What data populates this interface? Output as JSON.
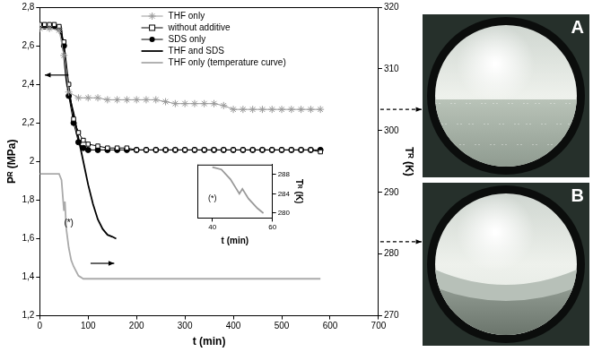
{
  "chart_data": [
    {
      "type": "line",
      "x_label": "t (min)",
      "y_label": "Pᴿ (MPa)",
      "y2_label": "Tᴿ (K)",
      "xlim": [
        0,
        700
      ],
      "xticks": [
        0,
        100,
        200,
        300,
        400,
        500,
        600,
        700
      ],
      "ylim": [
        1.2,
        2.8
      ],
      "yticks": [
        {
          "value": 1.2,
          "label": "1,2"
        },
        {
          "value": 1.4,
          "label": "1,4"
        },
        {
          "value": 1.6,
          "label": "1,6"
        },
        {
          "value": 1.8,
          "label": "1,8"
        },
        2,
        {
          "value": 2.2,
          "label": "2,2"
        },
        {
          "value": 2.4,
          "label": "2,4"
        },
        {
          "value": 2.6,
          "label": "2,6"
        },
        {
          "value": 2.8,
          "label": "2,8"
        }
      ],
      "y2lim": [
        270,
        320
      ],
      "y2ticks": [
        270,
        280,
        290,
        300,
        310,
        320
      ],
      "grid": false,
      "legend": "top",
      "annotations": [
        {
          "text": "(*)",
          "x": 60,
          "y": 1.68
        }
      ],
      "series": [
        {
          "name": "THF only",
          "color": "#999999",
          "marker": "star",
          "line_style": "solid",
          "x": [
            0,
            20,
            40,
            50,
            60,
            80,
            100,
            120,
            140,
            160,
            180,
            200,
            220,
            240,
            260,
            280,
            300,
            320,
            340,
            360,
            380,
            400,
            420,
            440,
            460,
            480,
            500,
            520,
            540,
            560,
            580
          ],
          "values": [
            2.69,
            2.69,
            2.68,
            2.55,
            2.36,
            2.33,
            2.33,
            2.33,
            2.32,
            2.32,
            2.32,
            2.32,
            2.32,
            2.32,
            2.31,
            2.3,
            2.3,
            2.3,
            2.3,
            2.3,
            2.29,
            2.27,
            2.27,
            2.27,
            2.27,
            2.27,
            2.27,
            2.27,
            2.27,
            2.27,
            2.27
          ]
        },
        {
          "name": "without additive",
          "color": "#000000",
          "marker": "square_open",
          "line_style": "solid",
          "x": [
            0,
            10,
            20,
            30,
            40,
            50,
            60,
            70,
            80,
            90,
            100,
            120,
            140,
            160,
            180,
            200,
            220,
            240,
            260,
            280,
            300,
            320,
            340,
            360,
            380,
            400,
            420,
            440,
            460,
            480,
            500,
            520,
            540,
            560,
            580
          ],
          "values": [
            2.71,
            2.71,
            2.71,
            2.71,
            2.7,
            2.62,
            2.4,
            2.22,
            2.15,
            2.11,
            2.09,
            2.08,
            2.07,
            2.07,
            2.07,
            2.06,
            2.06,
            2.06,
            2.06,
            2.06,
            2.06,
            2.06,
            2.06,
            2.06,
            2.06,
            2.06,
            2.06,
            2.06,
            2.06,
            2.06,
            2.06,
            2.06,
            2.06,
            2.06,
            2.05
          ]
        },
        {
          "name": "SDS only",
          "color": "#000000",
          "marker": "circle",
          "line_style": "solid",
          "x": [
            0,
            10,
            20,
            30,
            40,
            50,
            60,
            70,
            80,
            90,
            100,
            120,
            140,
            160,
            180,
            200,
            220,
            240,
            260,
            280,
            300,
            320,
            340,
            360,
            380,
            400,
            420,
            440,
            460,
            480,
            500,
            520,
            540,
            560,
            580
          ],
          "values": [
            2.7,
            2.7,
            2.7,
            2.7,
            2.69,
            2.6,
            2.34,
            2.2,
            2.1,
            2.07,
            2.06,
            2.06,
            2.06,
            2.06,
            2.06,
            2.06,
            2.06,
            2.06,
            2.06,
            2.06,
            2.06,
            2.06,
            2.06,
            2.06,
            2.06,
            2.06,
            2.06,
            2.06,
            2.06,
            2.06,
            2.06,
            2.06,
            2.06,
            2.06,
            2.06
          ]
        },
        {
          "name": "THF and SDS",
          "color": "#000000",
          "marker": "none",
          "line_style": "solid",
          "x": [
            0,
            40,
            45,
            50,
            55,
            60,
            65,
            70,
            80,
            90,
            100,
            110,
            120,
            130,
            140,
            150,
            158
          ],
          "values": [
            2.7,
            2.7,
            2.68,
            2.55,
            2.42,
            2.35,
            2.3,
            2.25,
            2.12,
            2.0,
            1.88,
            1.78,
            1.7,
            1.65,
            1.62,
            1.61,
            1.6
          ]
        },
        {
          "name": "THF only (temperature curve)",
          "color": "#aaaaaa",
          "marker": "none",
          "line_style": "solid",
          "axis": "y2",
          "x": [
            0,
            40,
            45,
            48,
            50,
            52,
            55,
            60,
            65,
            70,
            80,
            90,
            100,
            120,
            150,
            200,
            300,
            400,
            500,
            580
          ],
          "values": [
            293,
            293,
            292,
            289,
            287,
            288.5,
            284,
            281,
            279,
            278,
            276.5,
            276,
            276,
            276,
            276,
            276,
            276,
            276,
            276,
            276
          ]
        }
      ]
    },
    {
      "type": "line",
      "x_label": "t (min)",
      "y_label": "Tᴿ (K)",
      "xlim": [
        35,
        60
      ],
      "xticks": [
        40,
        60
      ],
      "ylim": [
        279,
        290
      ],
      "yticks": [
        280,
        284,
        288
      ],
      "grid": false,
      "annotations": [
        {
          "text": "(*)",
          "x": 40,
          "y": 283
        }
      ],
      "series": [
        {
          "color": "#999999",
          "marker": "none",
          "line_style": "solid",
          "x": [
            40,
            43,
            46,
            48,
            49,
            50,
            52,
            55,
            57
          ],
          "values": [
            289.5,
            289,
            287,
            285,
            284,
            285,
            283,
            281,
            280
          ]
        }
      ]
    }
  ],
  "photos": [
    "A",
    "B"
  ]
}
